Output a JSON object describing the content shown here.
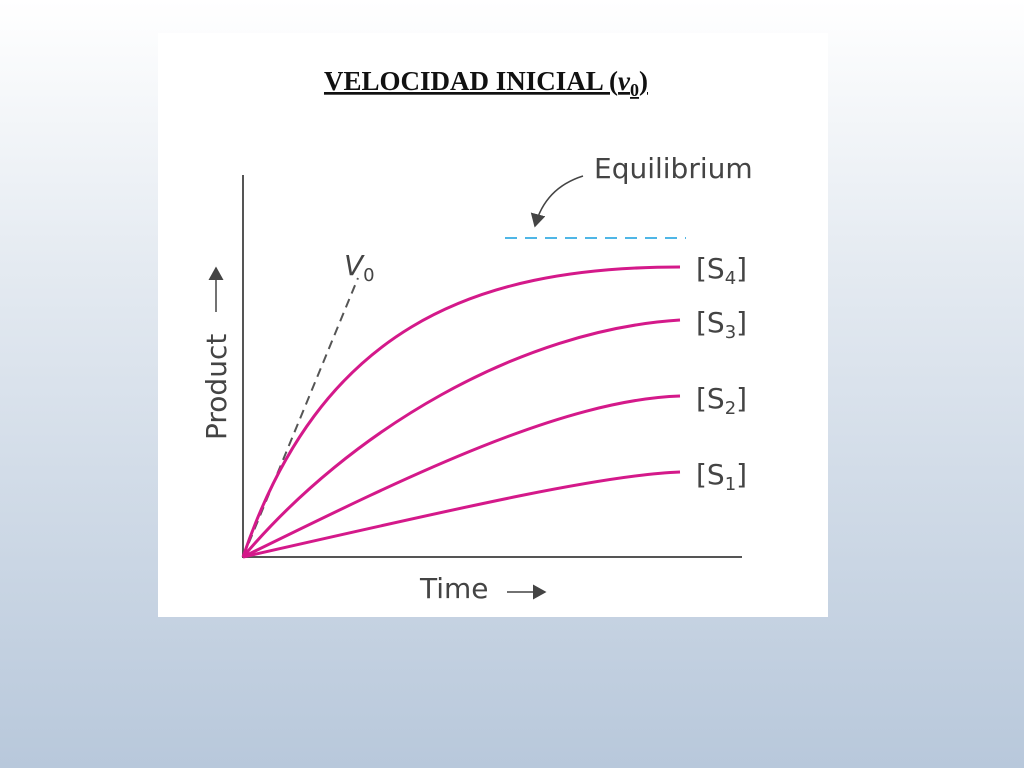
{
  "header": {
    "title": [
      "VELOCIDAD INICIAL (",
      "v",
      "0",
      ")"
    ]
  },
  "diagram": {
    "equilibrium": "Equilibrium",
    "tangent": {
      "base": "V",
      "sub": "0"
    },
    "y_axis": "Product",
    "x_axis": "Time",
    "curves": [
      {
        "base": "[S",
        "sub": "4",
        "end": "]"
      },
      {
        "base": "[S",
        "sub": "3",
        "end": "]"
      },
      {
        "base": "[S",
        "sub": "2",
        "end": "]"
      },
      {
        "base": "[S",
        "sub": "1",
        "end": "]"
      }
    ]
  }
}
